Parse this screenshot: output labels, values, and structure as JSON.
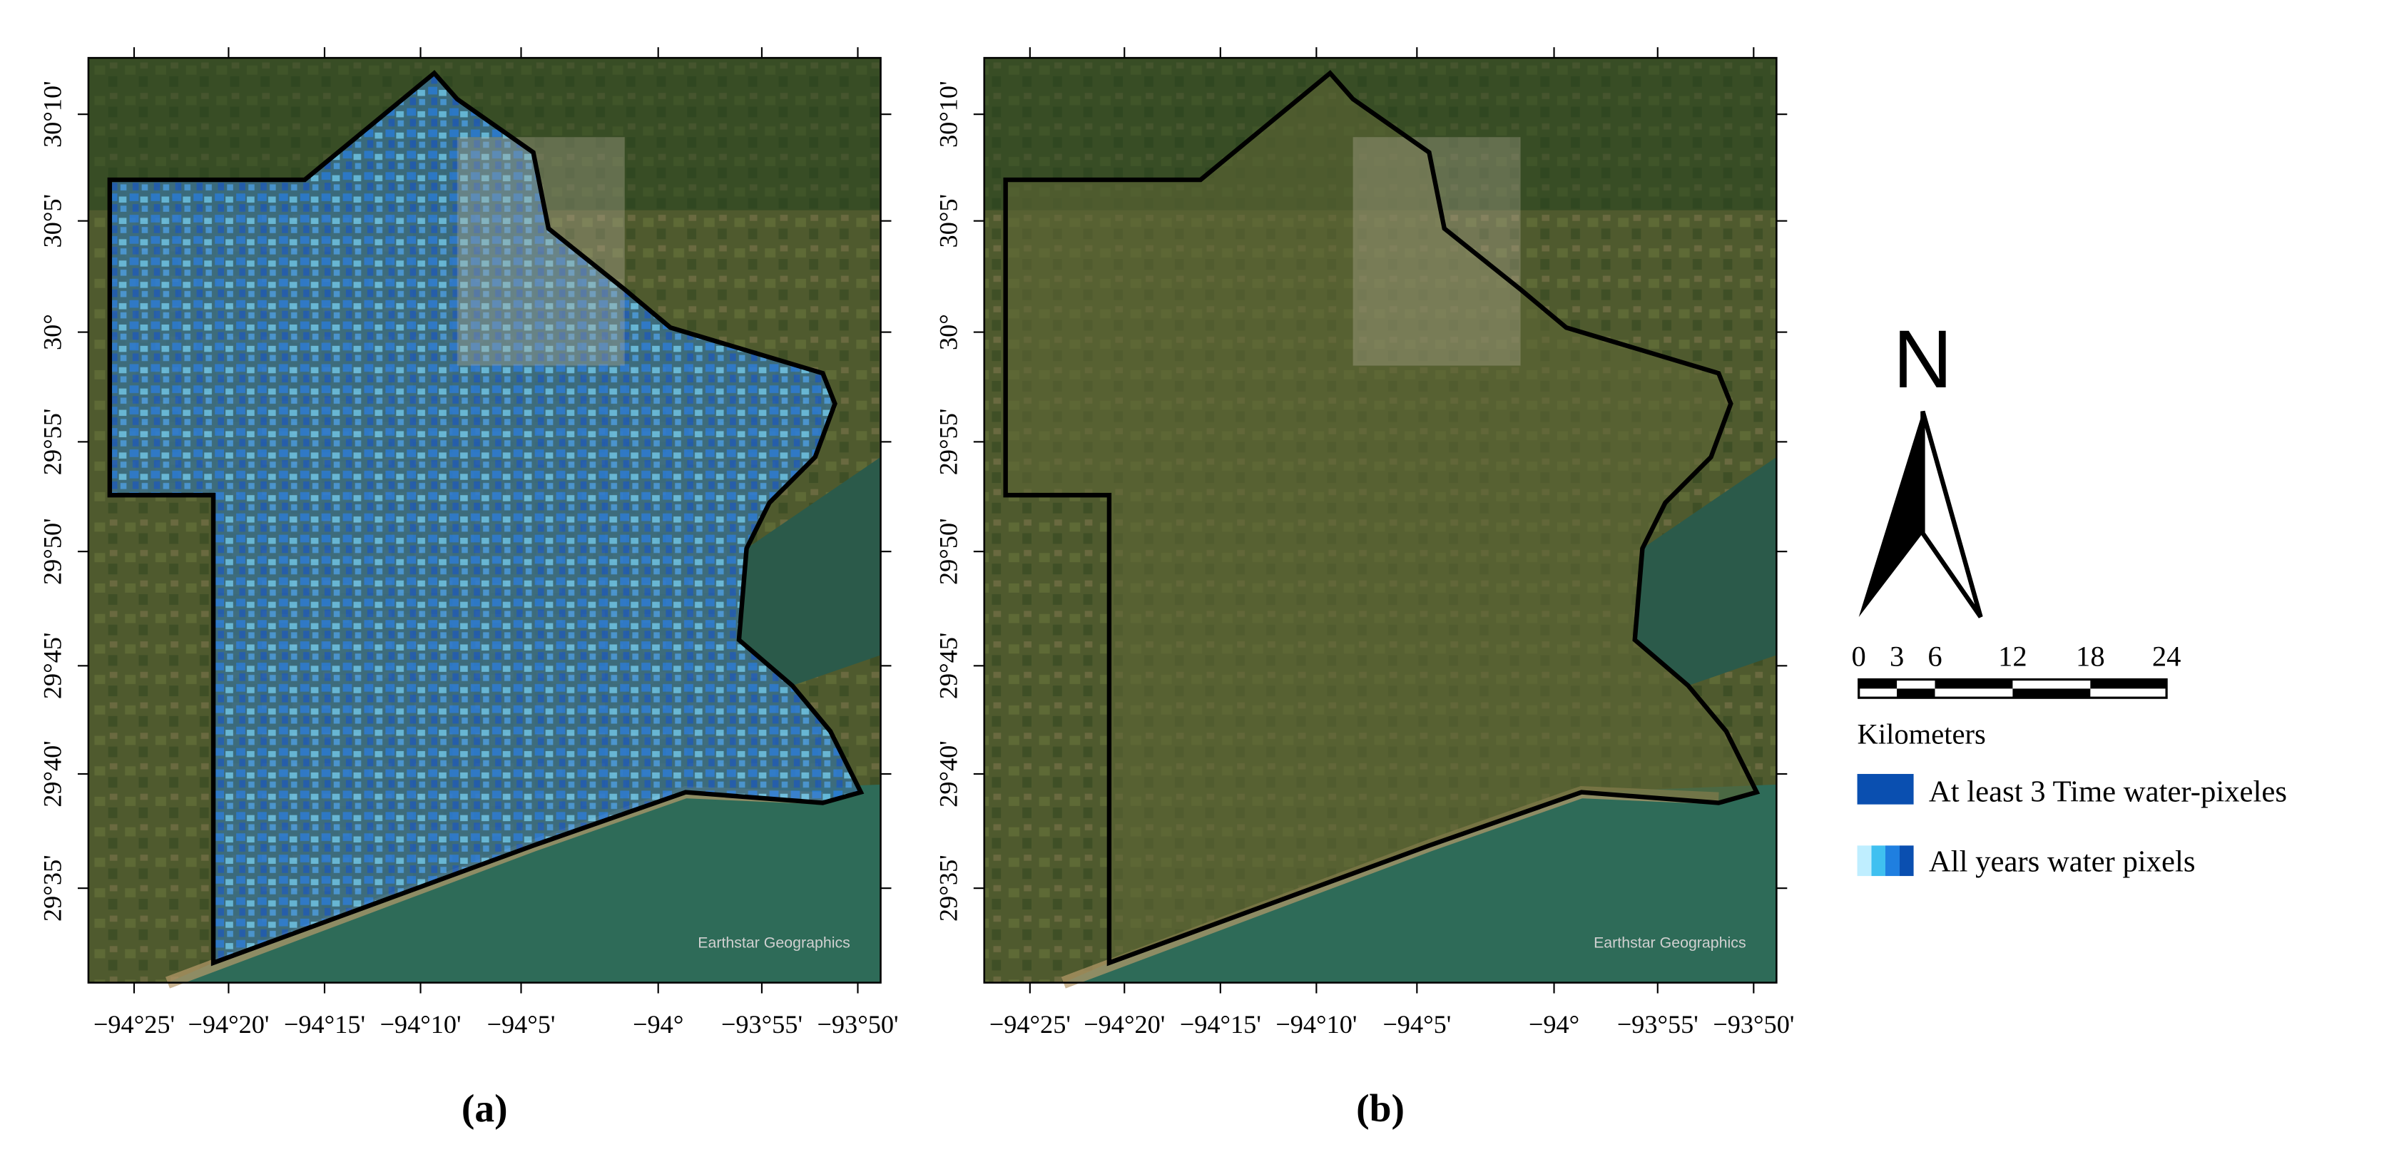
{
  "maps": [
    {
      "label": "(a)",
      "attribution": "Earthstar Geographics",
      "lon_ticks": [
        "−94°25'",
        "−94°20'",
        "−94°15'",
        "−94°10'",
        "−94°5'",
        "−94°",
        "−93°55'",
        "−93°50'"
      ],
      "lat_ticks": [
        "30°10'",
        "30°5'",
        "30°",
        "29°55'",
        "29°50'",
        "29°45'",
        "29°40'",
        "29°35'"
      ]
    },
    {
      "label": "(b)",
      "attribution": "Earthstar Geographics",
      "lon_ticks": [
        "−94°25'",
        "−94°20'",
        "−94°15'",
        "−94°10'",
        "−94°5'",
        "−94°",
        "−93°55'",
        "−93°50'"
      ],
      "lat_ticks": [
        "30°10'",
        "30°5'",
        "30°",
        "29°55'",
        "29°50'",
        "29°45'",
        "29°40'",
        "29°35'"
      ]
    }
  ],
  "north_arrow": "N",
  "scale_bar": {
    "labels": [
      0,
      3,
      6,
      12,
      18,
      24
    ],
    "unit": "Kilometers"
  },
  "legend": [
    {
      "label": "At least 3 Time water-pixeles"
    },
    {
      "label": "All years water pixels"
    }
  ]
}
